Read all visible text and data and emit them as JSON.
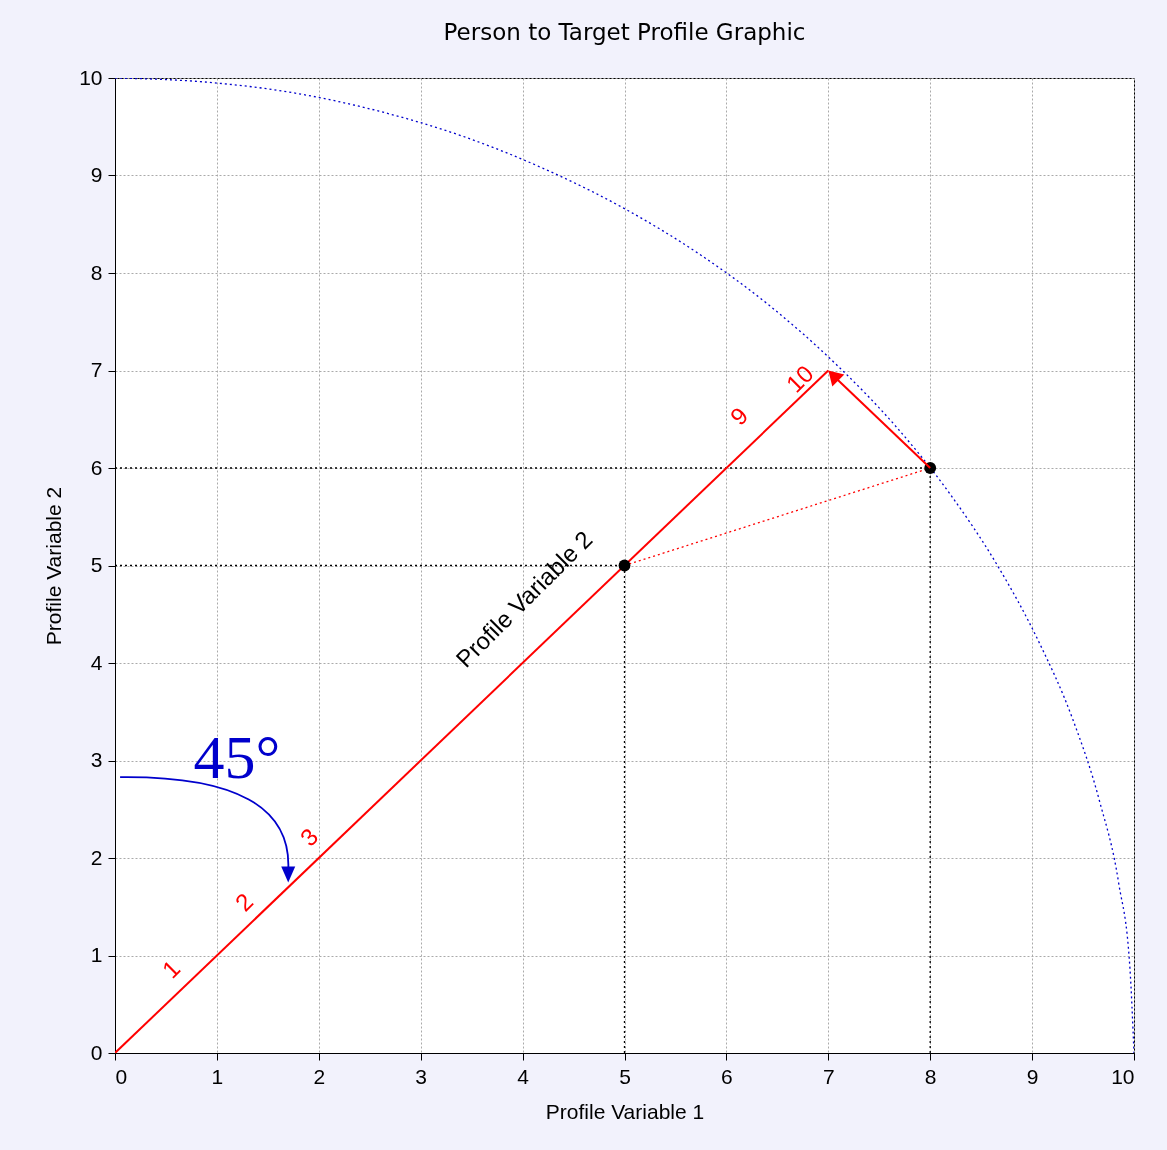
{
  "chart_data": {
    "type": "line",
    "title": "Person to Target Profile Graphic",
    "xlabel": "Profile Variable 1",
    "ylabel": "Profile Variable 2",
    "xlim": [
      0,
      10
    ],
    "ylim": [
      0,
      10
    ],
    "xticks": [
      0,
      1,
      2,
      3,
      4,
      5,
      6,
      7,
      8,
      9,
      10
    ],
    "yticks": [
      0,
      1,
      2,
      3,
      4,
      5,
      6,
      7,
      8,
      9,
      10
    ],
    "grid": true,
    "series": [
      {
        "color": "#0000cc",
        "line_style": "dotted",
        "x": [
          0,
          0.87,
          1.74,
          2.59,
          3.42,
          4.23,
          5,
          5.74,
          6.43,
          7.07,
          7.66,
          8.19,
          8.66,
          9.06,
          9.4,
          9.66,
          9.85,
          9.96,
          10
        ],
        "values": [
          10,
          9.96,
          9.85,
          9.66,
          9.4,
          9.06,
          8.66,
          8.19,
          7.66,
          7.07,
          6.43,
          5.74,
          5,
          4.23,
          3.42,
          2.59,
          1.74,
          0.87,
          0
        ]
      },
      {
        "color": "#000000",
        "line_style": "dotted",
        "x": [
          0,
          5
        ],
        "values": [
          5,
          5
        ]
      },
      {
        "color": "#000000",
        "line_style": "dotted",
        "x": [
          5,
          5
        ],
        "values": [
          0,
          5
        ]
      },
      {
        "color": "#000000",
        "line_style": "dotted",
        "x": [
          0,
          8
        ],
        "values": [
          6,
          6
        ]
      },
      {
        "color": "#000000",
        "line_style": "dotted",
        "x": [
          8,
          8
        ],
        "values": [
          0,
          6
        ]
      },
      {
        "color": "#ff0000",
        "line_style": "dotted",
        "x": [
          5,
          8
        ],
        "values": [
          5,
          6
        ]
      },
      {
        "color": "#ff0000",
        "line_style": "solid",
        "x": [
          0,
          7
        ],
        "values": [
          0,
          7
        ]
      },
      {
        "type": "scatter",
        "marker": "circle",
        "color": "#000000",
        "x": [
          5,
          8
        ],
        "values": [
          5,
          6
        ]
      }
    ],
    "annotations": [
      "1",
      "2",
      "3",
      "9",
      {
        "text": "10",
        "x": 7,
        "y": 7
      },
      "Profile Variable 2",
      "45°"
    ]
  }
}
